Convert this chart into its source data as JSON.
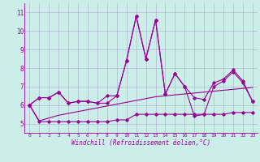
{
  "title": "",
  "xlabel": "Windchill (Refroidissement éolien,°C)",
  "background_color": "#cceee8",
  "line_color": "#990099",
  "grid_color": "#aaaacc",
  "x_values": [
    0,
    1,
    2,
    3,
    4,
    5,
    6,
    7,
    8,
    9,
    10,
    11,
    12,
    13,
    14,
    15,
    16,
    17,
    18,
    19,
    20,
    21,
    22,
    23
  ],
  "y_main": [
    6.0,
    6.4,
    6.4,
    6.7,
    6.1,
    6.2,
    6.2,
    6.1,
    6.1,
    6.5,
    8.4,
    10.8,
    8.5,
    10.6,
    6.6,
    7.7,
    7.0,
    5.4,
    5.5,
    7.0,
    7.3,
    7.8,
    7.2,
    6.2
  ],
  "y_upper": [
    6.0,
    6.4,
    6.4,
    6.7,
    6.1,
    6.2,
    6.2,
    6.1,
    6.5,
    6.5,
    8.4,
    10.8,
    8.5,
    10.6,
    6.6,
    7.7,
    7.0,
    6.4,
    6.3,
    7.2,
    7.4,
    7.9,
    7.3,
    6.2
  ],
  "y_lower": [
    6.0,
    5.1,
    5.1,
    5.1,
    5.1,
    5.1,
    5.1,
    5.1,
    5.1,
    5.2,
    5.2,
    5.5,
    5.5,
    5.5,
    5.5,
    5.5,
    5.5,
    5.5,
    5.5,
    5.5,
    5.5,
    5.6,
    5.6,
    5.6
  ],
  "y_trend": [
    6.0,
    5.15,
    5.3,
    5.45,
    5.55,
    5.65,
    5.75,
    5.85,
    5.95,
    6.05,
    6.15,
    6.25,
    6.35,
    6.45,
    6.5,
    6.55,
    6.6,
    6.65,
    6.7,
    6.75,
    6.8,
    6.85,
    6.9,
    6.95
  ],
  "ylim": [
    4.5,
    11.5
  ],
  "yticks": [
    5,
    6,
    7,
    8,
    9,
    10,
    11
  ],
  "xticks": [
    0,
    1,
    2,
    3,
    4,
    5,
    6,
    7,
    8,
    9,
    10,
    11,
    12,
    13,
    14,
    15,
    16,
    17,
    18,
    19,
    20,
    21,
    22,
    23
  ]
}
